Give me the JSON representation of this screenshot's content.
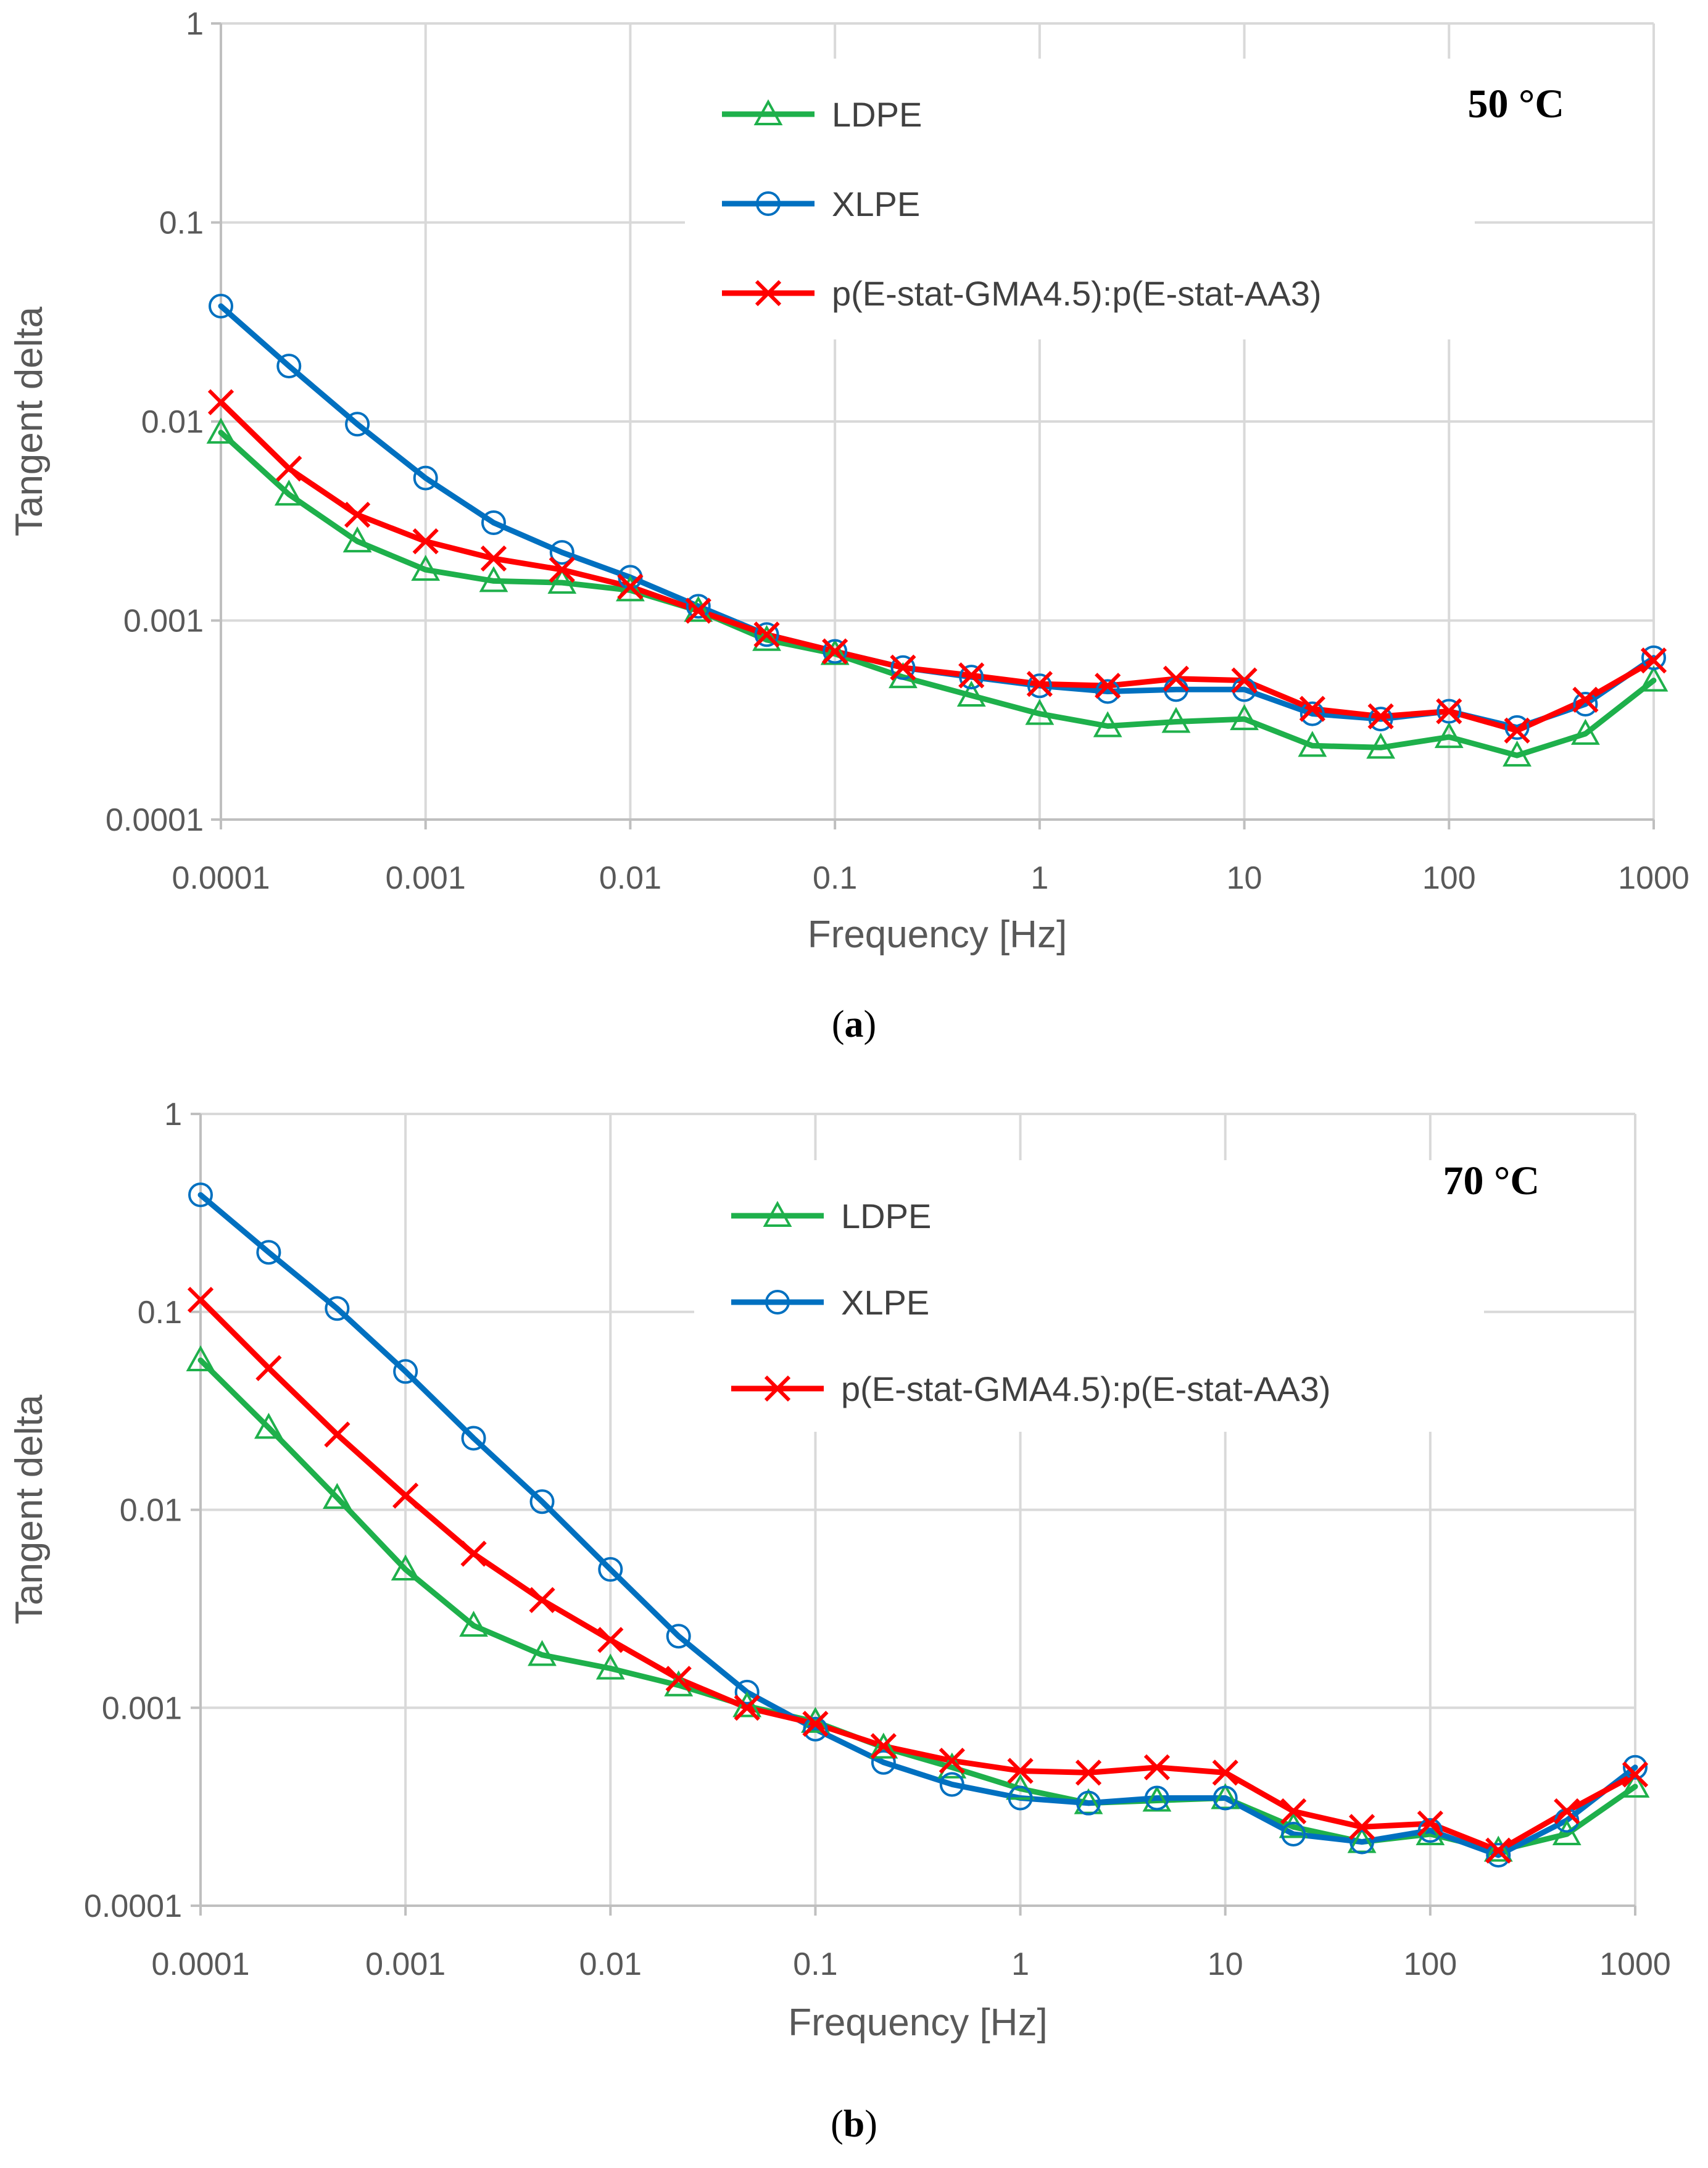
{
  "chart_data": [
    {
      "type": "line",
      "panel": "a",
      "annotation": "50 °C",
      "caption_label": "a",
      "xscale": "log",
      "yscale": "log",
      "xlabel": "Frequency [Hz]",
      "ylabel": "Tangent delta",
      "xlim": [
        0.0001,
        1000
      ],
      "ylim": [
        0.0001,
        1
      ],
      "x_ticks": [
        "0.0001",
        "0.001",
        "0.01",
        "0.1",
        "1",
        "10",
        "100",
        "1000"
      ],
      "y_ticks": [
        "0.0001",
        "0.001",
        "0.01",
        "0.1",
        "1"
      ],
      "grid": true,
      "legend_position": "top-center",
      "x": [
        0.0001,
        0.000215,
        0.000464,
        0.001,
        0.00215,
        0.00464,
        0.01,
        0.0215,
        0.0464,
        0.1,
        0.215,
        0.464,
        1,
        2.15,
        4.64,
        10,
        21.5,
        46.4,
        100,
        215,
        464,
        1000
      ],
      "series": [
        {
          "name": "LDPE",
          "color": "#1eb04b",
          "marker": "triangle",
          "values": [
            0.0088,
            0.0043,
            0.0025,
            0.0018,
            0.00158,
            0.00155,
            0.00142,
            0.00112,
            0.0008,
            0.00068,
            0.00052,
            0.00042,
            0.00034,
            0.000295,
            0.00031,
            0.00032,
            0.000235,
            0.00023,
            0.00026,
            0.00021,
            0.00027,
            0.0005
          ]
        },
        {
          "name": "XLPE",
          "color": "#0070c0",
          "marker": "circle",
          "values": [
            0.038,
            0.019,
            0.0097,
            0.0052,
            0.0031,
            0.0022,
            0.00165,
            0.00118,
            0.00085,
            0.0007,
            0.00058,
            0.00052,
            0.00047,
            0.00044,
            0.00045,
            0.00045,
            0.00034,
            0.00032,
            0.00035,
            0.00029,
            0.00038,
            0.00065
          ]
        },
        {
          "name": "p(E-stat-GMA4.5):p(E-stat-AA3)",
          "color": "#ff0000",
          "marker": "x",
          "values": [
            0.0125,
            0.0058,
            0.0034,
            0.0025,
            0.00205,
            0.0018,
            0.00148,
            0.00112,
            0.00085,
            0.0007,
            0.00058,
            0.00053,
            0.00048,
            0.00047,
            0.00051,
            0.0005,
            0.00036,
            0.00033,
            0.00035,
            0.00028,
            0.0004,
            0.00063
          ]
        }
      ]
    },
    {
      "type": "line",
      "panel": "b",
      "annotation": "70 °C",
      "caption_label": "b",
      "xscale": "log",
      "yscale": "log",
      "xlabel": "Frequency [Hz]",
      "ylabel": "Tangent delta",
      "xlim": [
        0.0001,
        1000
      ],
      "ylim": [
        0.0001,
        1
      ],
      "x_ticks": [
        "0.0001",
        "0.001",
        "0.01",
        "0.1",
        "1",
        "10",
        "100",
        "1000"
      ],
      "y_ticks": [
        "0.0001",
        "0.001",
        "0.01",
        "0.1",
        "1"
      ],
      "grid": true,
      "legend_position": "top-center",
      "x": [
        0.0001,
        0.000215,
        0.000464,
        0.001,
        0.00215,
        0.00464,
        0.01,
        0.0215,
        0.0464,
        0.1,
        0.215,
        0.464,
        1,
        2.15,
        4.64,
        10,
        21.5,
        46.4,
        100,
        215,
        464,
        1000
      ],
      "series": [
        {
          "name": "LDPE",
          "color": "#1eb04b",
          "marker": "triangle",
          "values": [
            0.057,
            0.026,
            0.0115,
            0.005,
            0.0026,
            0.00185,
            0.00158,
            0.0013,
            0.00102,
            0.00085,
            0.00063,
            0.0005,
            0.00039,
            0.00033,
            0.00034,
            0.00035,
            0.00025,
            0.00021,
            0.00023,
            0.00019,
            0.00023,
            0.0004
          ]
        },
        {
          "name": "XLPE",
          "color": "#0070c0",
          "marker": "circle",
          "values": [
            0.39,
            0.2,
            0.104,
            0.05,
            0.023,
            0.011,
            0.005,
            0.0023,
            0.0012,
            0.00078,
            0.00053,
            0.00041,
            0.00035,
            0.00033,
            0.00035,
            0.00035,
            0.00023,
            0.00021,
            0.00024,
            0.00018,
            0.00027,
            0.0005
          ]
        },
        {
          "name": "p(E-stat-GMA4.5):p(E-stat-AA3)",
          "color": "#ff0000",
          "marker": "x",
          "values": [
            0.115,
            0.052,
            0.024,
            0.0118,
            0.006,
            0.0035,
            0.0022,
            0.0014,
            0.001,
            0.00083,
            0.00064,
            0.00054,
            0.00048,
            0.00047,
            0.0005,
            0.00047,
            0.0003,
            0.00025,
            0.00026,
            0.00019,
            0.0003,
            0.00046
          ]
        }
      ]
    }
  ]
}
